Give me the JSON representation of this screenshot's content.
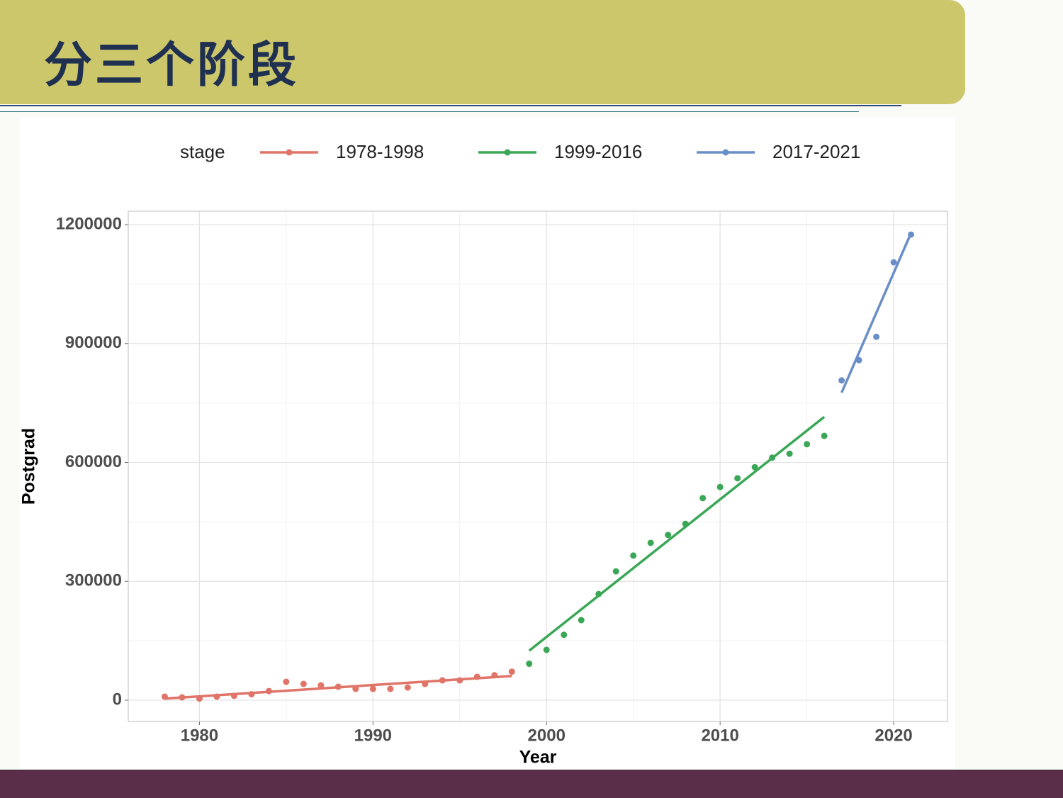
{
  "header": {
    "title": "分三个阶段"
  },
  "chart_data": {
    "type": "scatter",
    "x_label": "Year",
    "y_label": "Postgrad",
    "legend_title": "stage",
    "legend_position": "top",
    "grid": true,
    "xlim": [
      1975.9,
      2023.1
    ],
    "ylim": [
      -53700,
      1234000
    ],
    "xticks": [
      1980,
      1990,
      2000,
      2010,
      2020
    ],
    "yticks": [
      0,
      300000,
      600000,
      900000,
      1200000
    ],
    "minor_xticks": [
      1985,
      1995,
      2005,
      2015
    ],
    "minor_yticks": [
      150000,
      450000,
      750000,
      1050000
    ],
    "series": [
      {
        "name": "1978-1998",
        "color": "#E07468",
        "x": [
          1978,
          1979,
          1980,
          1981,
          1982,
          1983,
          1984,
          1985,
          1986,
          1987,
          1988,
          1989,
          1990,
          1991,
          1992,
          1993,
          1994,
          1995,
          1996,
          1997,
          1998
        ],
        "values": [
          9000,
          7000,
          4000,
          9000,
          11000,
          15000,
          23000,
          46500,
          41000,
          37500,
          34000,
          28500,
          28500,
          28500,
          32000,
          41000,
          50000,
          50000,
          59000,
          63000,
          72000
        ],
        "fit": {
          "x": [
            1978,
            1998
          ],
          "values": [
            4000,
            61000
          ]
        }
      },
      {
        "name": "1999-2016",
        "color": "#3AA757",
        "x": [
          1999,
          2000,
          2001,
          2002,
          2003,
          2004,
          2005,
          2006,
          2007,
          2008,
          2009,
          2010,
          2011,
          2012,
          2013,
          2014,
          2015,
          2016
        ],
        "values": [
          92000,
          127000,
          165000,
          202000,
          268000,
          325000,
          365000,
          397000,
          417000,
          445000,
          510000,
          538000,
          560000,
          588000,
          612000,
          622000,
          646000,
          667000
        ],
        "fit": {
          "x": [
            1999,
            2016
          ],
          "values": [
            125000,
            715000
          ]
        }
      },
      {
        "name": "2017-2021",
        "color": "#6A8FC8",
        "x": [
          2017,
          2018,
          2019,
          2020,
          2021
        ],
        "values": [
          807000,
          858000,
          917000,
          1105000,
          1175000
        ],
        "fit": {
          "x": [
            2017,
            2021
          ],
          "values": [
            776000,
            1179000
          ]
        }
      }
    ]
  }
}
